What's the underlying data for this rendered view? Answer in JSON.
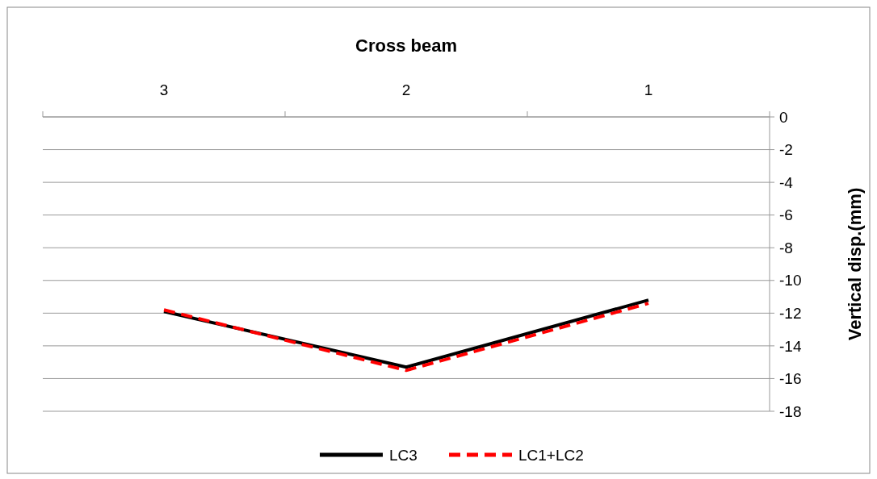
{
  "chart_data": {
    "type": "line",
    "title": "Cross beam",
    "ylabel": "Vertical disp.(mm)",
    "categories": [
      "3",
      "2",
      "1"
    ],
    "series": [
      {
        "name": "LC3",
        "color": "#000000",
        "values": [
          -11.9,
          -15.3,
          -11.2
        ],
        "line_style": "solid"
      },
      {
        "name": "LC1+LC2",
        "color": "#ff0000",
        "values": [
          -11.8,
          -15.5,
          -11.4
        ],
        "line_style": "dashed"
      }
    ],
    "ylim": [
      -18,
      0
    ],
    "yticks": [
      -18,
      -16,
      -14,
      -12,
      -10,
      -8,
      -6,
      -4,
      -2,
      0
    ],
    "grid": "y",
    "legend": "bottom"
  }
}
